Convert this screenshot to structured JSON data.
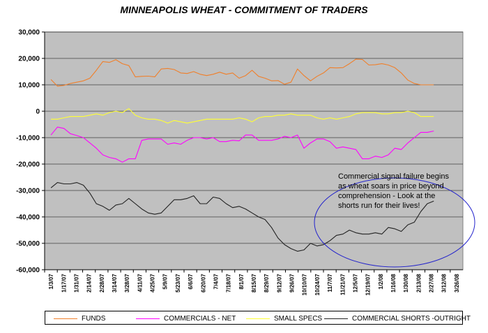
{
  "chart_data": {
    "type": "line",
    "title": "MINNEAPOLIS WHEAT - COMMITMENT OF TRADERS",
    "ylim": [
      -60000,
      30000
    ],
    "yticks": [
      30000,
      20000,
      10000,
      0,
      -10000,
      -20000,
      -30000,
      -40000,
      -50000,
      -60000
    ],
    "ytick_labels": [
      "30,000",
      "20,000",
      "10,000",
      "0",
      "-10,000",
      "-20,000",
      "-30,000",
      "-40,000",
      "-50,000",
      "-60,000"
    ],
    "xtick_labels": [
      "1/3/07",
      "1/17/07",
      "1/31/07",
      "2/14/07",
      "2/28/07",
      "3/14/07",
      "3/28/07",
      "4/11/07",
      "4/25/07",
      "5/9/07",
      "5/23/07",
      "6/6/07",
      "6/20/07",
      "7/4/07",
      "7/18/07",
      "8/1/07",
      "8/15/07",
      "8/29/07",
      "9/12/07",
      "9/26/07",
      "10/10/07",
      "10/24/07",
      "11/7/07",
      "11/21/07",
      "12/5/07",
      "12/19/07",
      "1/2/08",
      "1/16/08",
      "1/30/08",
      "2/13/08",
      "2/27/08",
      "3/12/08",
      "3/26/08"
    ],
    "grid": true,
    "plot_background": "#c0c0c0",
    "legend_position": "bottom",
    "series": [
      {
        "name": "FUNDS",
        "color": "#f07f2a",
        "values": [
          12000,
          9500,
          9800,
          10500,
          11000,
          11500,
          12500,
          15500,
          18800,
          18500,
          19500,
          18000,
          17300,
          13000,
          13200,
          13300,
          13000,
          16000,
          16200,
          15800,
          14500,
          14300,
          15000,
          14000,
          13500,
          14000,
          14800,
          14000,
          14500,
          12500,
          13500,
          15500,
          13200,
          12500,
          11500,
          11600,
          10200,
          11000,
          16000,
          13500,
          11500,
          13200,
          14500,
          16500,
          16400,
          16500,
          18000,
          19700,
          19600,
          17500,
          17600,
          18000,
          17500,
          16500,
          14500,
          11800,
          10500,
          10000,
          10000,
          10000
        ]
      },
      {
        "name": "COMMERCIALS - NET",
        "color": "#ff00ff",
        "values": [
          -9000,
          -6000,
          -6500,
          -8500,
          -9200,
          -10000,
          -12000,
          -14000,
          -16500,
          -17500,
          -18000,
          -19300,
          -18000,
          -18000,
          -11000,
          -10500,
          -10500,
          -10500,
          -12500,
          -12000,
          -12500,
          -11000,
          -10000,
          -10000,
          -10500,
          -10000,
          -11500,
          -11500,
          -11000,
          -11200,
          -9000,
          -9000,
          -11000,
          -11000,
          -11000,
          -10500,
          -9500,
          -10000,
          -9000,
          -14000,
          -12000,
          -10500,
          -10500,
          -11500,
          -14000,
          -13500,
          -14000,
          -14500,
          -18000,
          -18000,
          -17000,
          -17500,
          -16500,
          -14000,
          -14500,
          -12000,
          -10000,
          -8000,
          -8000,
          -7500
        ]
      },
      {
        "name": "SMALL SPECS",
        "color": "#ffff33",
        "values": [
          -3000,
          -3000,
          -2500,
          -2000,
          -2000,
          -2000,
          -1500,
          -1000,
          -1500,
          -500,
          0,
          -500,
          1000,
          -1500,
          -2500,
          -3000,
          -3000,
          -3500,
          -4500,
          -3500,
          -4000,
          -4500,
          -4000,
          -3500,
          -3000,
          -3000,
          -3000,
          -3000,
          -3000,
          -2500,
          -3000,
          -4000,
          -2500,
          -2000,
          -2000,
          -1500,
          -1500,
          -1000,
          -1500,
          -1500,
          -1500,
          -2500,
          -3000,
          -2500,
          -3000,
          -2500,
          -2000,
          -1000,
          -500,
          -500,
          -500,
          -1000,
          -1000,
          -500,
          -500,
          0,
          -500,
          -2000,
          -2000,
          -2000
        ]
      },
      {
        "name": "COMMERCIAL SHORTS -OUTRIGHT",
        "color": "#222222",
        "values": [
          -29000,
          -27000,
          -27500,
          -27500,
          -27000,
          -28000,
          -31000,
          -35000,
          -36000,
          -37500,
          -35500,
          -35000,
          -33000,
          -35000,
          -37000,
          -38500,
          -39000,
          -38500,
          -36000,
          -33500,
          -33500,
          -33000,
          -32000,
          -35000,
          -35000,
          -32500,
          -33000,
          -35000,
          -36500,
          -36000,
          -37000,
          -38500,
          -40000,
          -41000,
          -44000,
          -48000,
          -50500,
          -52000,
          -53000,
          -52500,
          -50000,
          -51000,
          -50500,
          -49000,
          -47000,
          -46500,
          -45000,
          -46000,
          -46500,
          -46500,
          -46000,
          -46500,
          -44000,
          -44500,
          -45500,
          -43000,
          -42000,
          -38000,
          -35000,
          -34000
        ]
      }
    ],
    "annotation": {
      "lines": [
        "Commercial signal failure begins",
        "as wheat soars in price beyond",
        "comprehension - Look at the",
        "shorts run for their lives!"
      ],
      "ellipse_color": "#2222cc"
    }
  }
}
